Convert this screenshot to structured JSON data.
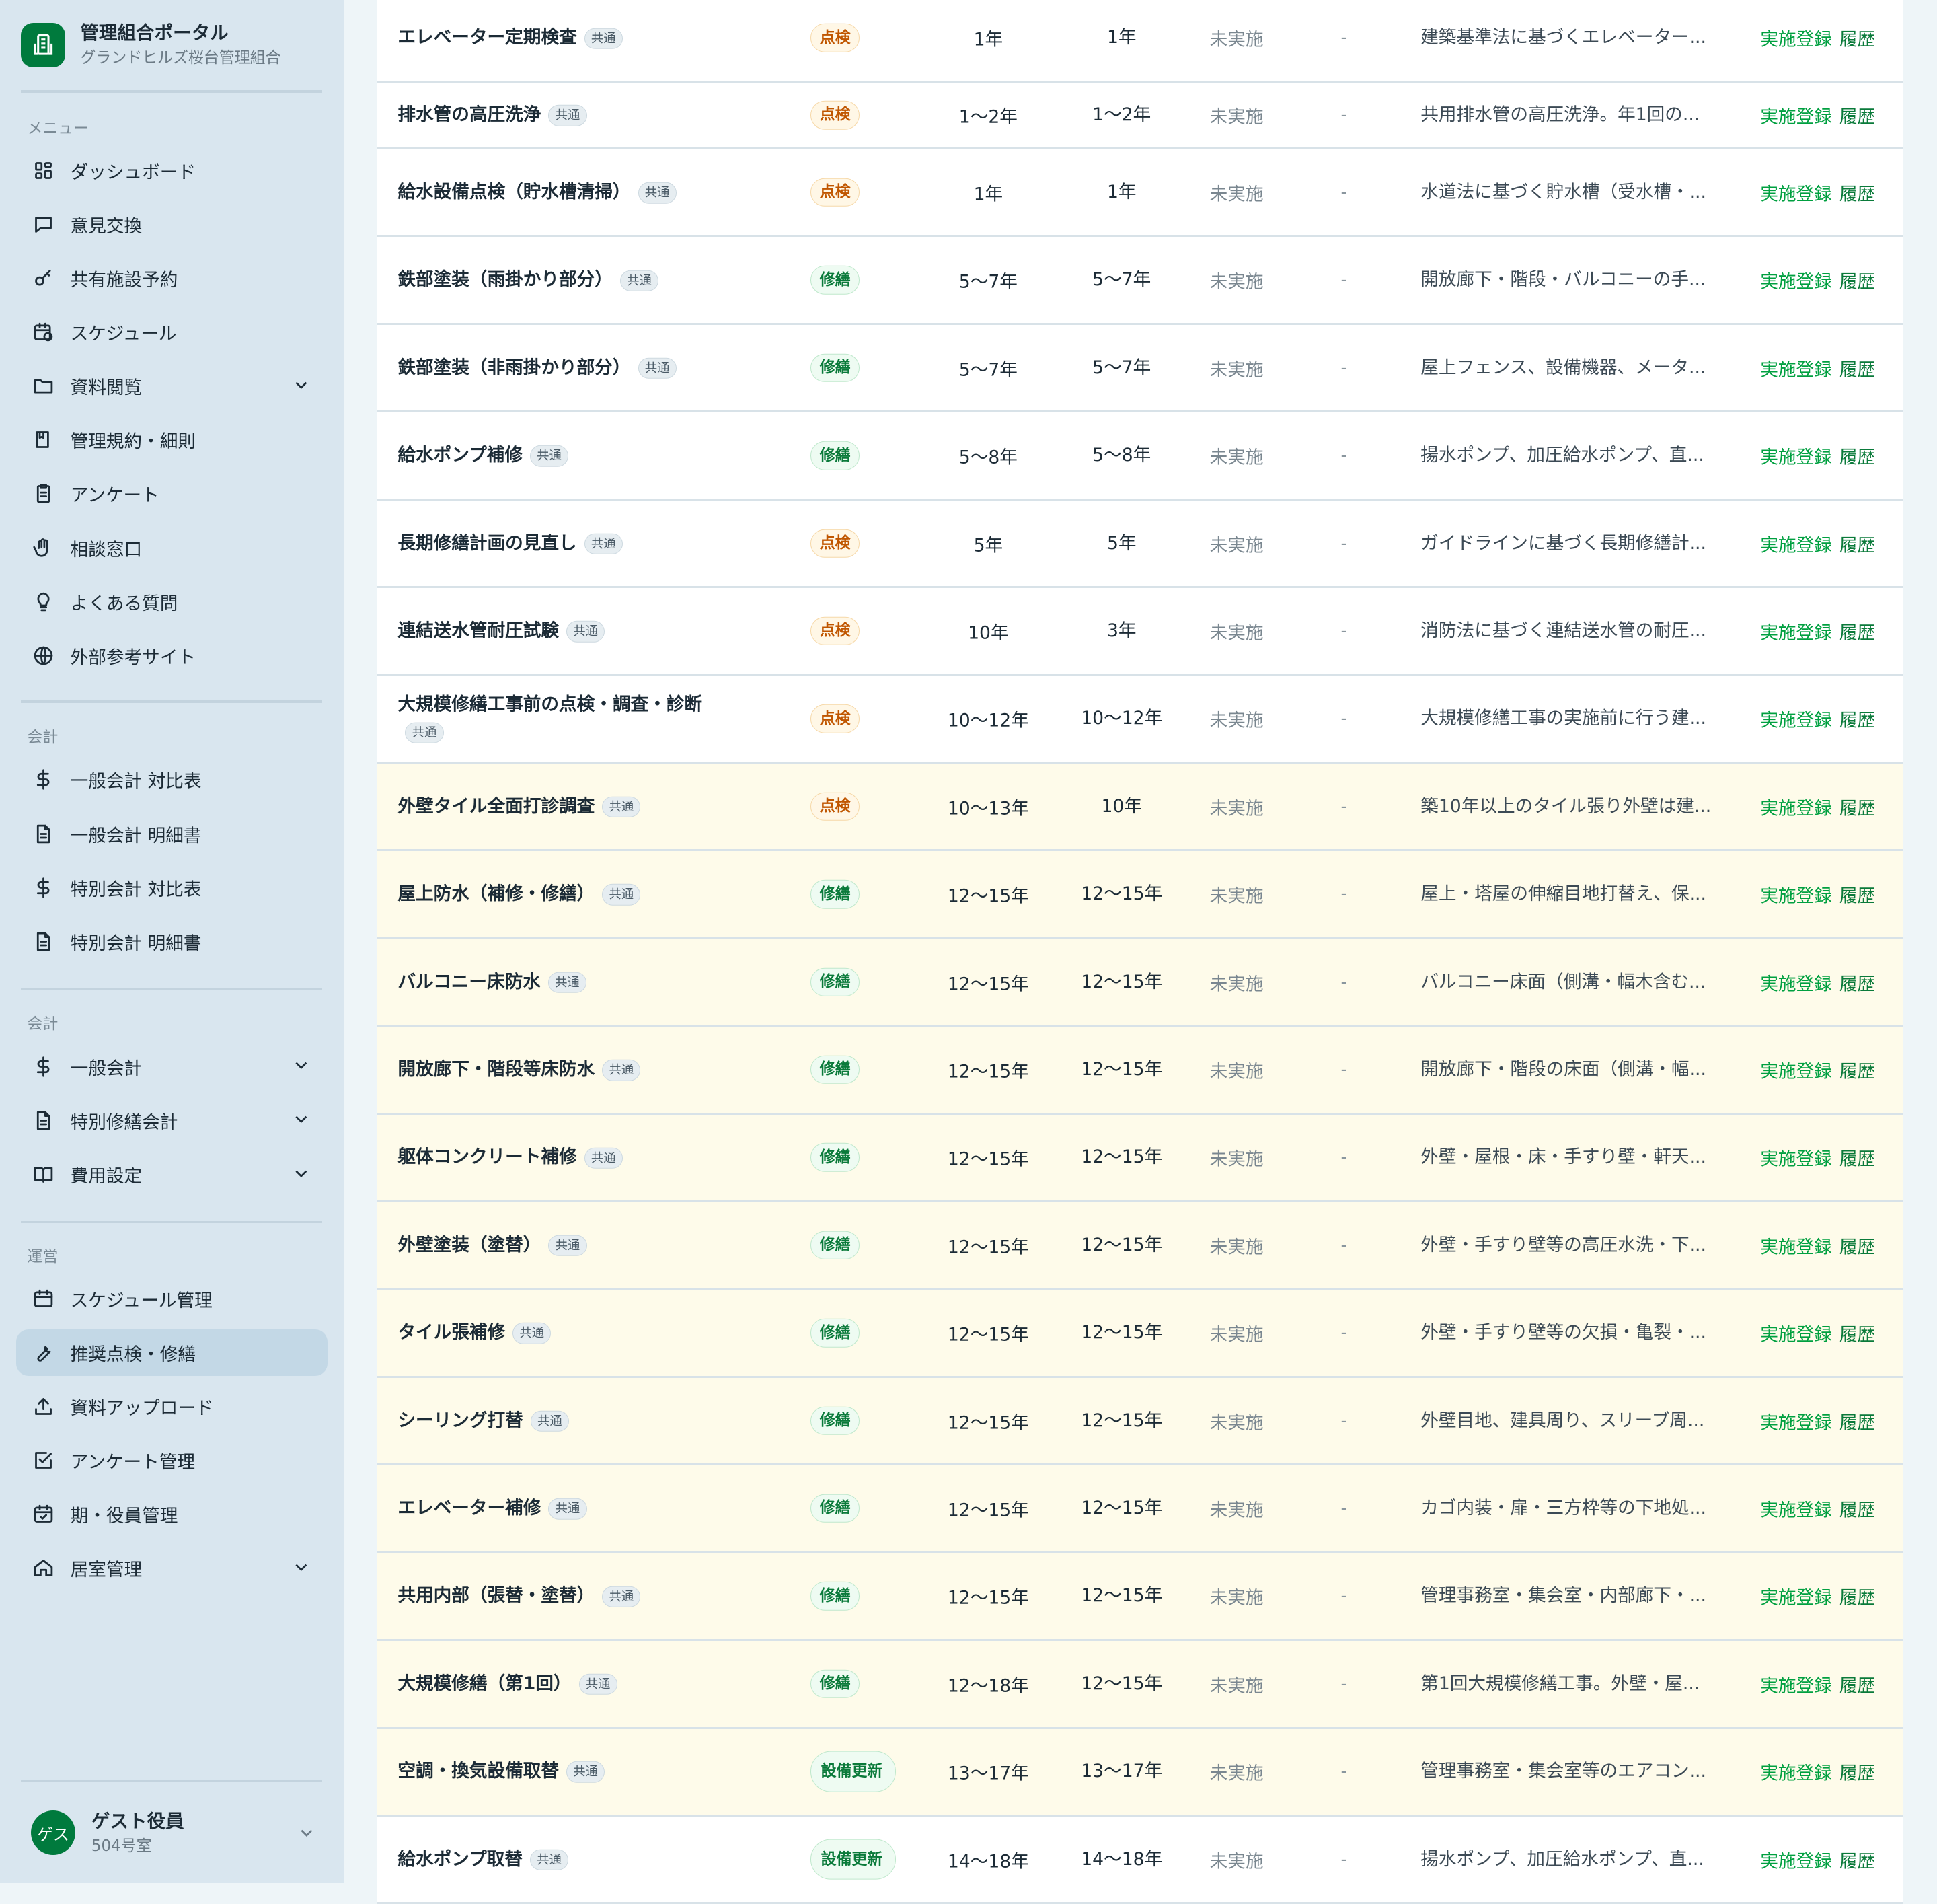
{
  "brand": {
    "title": "管理組合ポータル",
    "subtitle": "グランドヒルズ桜台管理組合",
    "icon": "building-icon"
  },
  "colors": {
    "accent": "#007a3d",
    "sidebar": "#d9e6ef",
    "highlight_row": "#fefbea",
    "inspection": "#c05600",
    "repair": "#0a7a3a",
    "link": "#00a040"
  },
  "sections": [
    {
      "label": "メニュー",
      "items": [
        {
          "label": "ダッシュボード",
          "icon": "grid-icon"
        },
        {
          "label": "意見交換",
          "icon": "chat-icon"
        },
        {
          "label": "共有施設予約",
          "icon": "key-icon"
        },
        {
          "label": "スケジュール",
          "icon": "calendar-clock-icon"
        },
        {
          "label": "資料閲覧",
          "icon": "folder-icon",
          "expandable": true
        },
        {
          "label": "管理規約・細則",
          "icon": "book-icon"
        },
        {
          "label": "アンケート",
          "icon": "clipboard-icon"
        },
        {
          "label": "相談窓口",
          "icon": "hand-icon"
        },
        {
          "label": "よくある質問",
          "icon": "lightbulb-icon"
        },
        {
          "label": "外部参考サイト",
          "icon": "globe-icon"
        }
      ]
    },
    {
      "label": "会計",
      "items": [
        {
          "label": "一般会計 対比表",
          "icon": "dollar-icon"
        },
        {
          "label": "一般会計 明細書",
          "icon": "document-icon"
        },
        {
          "label": "特別会計 対比表",
          "icon": "dollar-icon"
        },
        {
          "label": "特別会計 明細書",
          "icon": "document-icon"
        }
      ]
    },
    {
      "label": "会計",
      "items": [
        {
          "label": "一般会計",
          "icon": "dollar-icon",
          "expandable": true
        },
        {
          "label": "特別修繕会計",
          "icon": "document-icon",
          "expandable": true
        },
        {
          "label": "費用設定",
          "icon": "book-open-icon",
          "expandable": true
        }
      ]
    },
    {
      "label": "運営",
      "items": [
        {
          "label": "スケジュール管理",
          "icon": "calendar-icon"
        },
        {
          "label": "推奨点検・修繕",
          "icon": "wrench-icon",
          "active": true
        },
        {
          "label": "資料アップロード",
          "icon": "upload-icon"
        },
        {
          "label": "アンケート管理",
          "icon": "checkbox-icon"
        },
        {
          "label": "期・役員管理",
          "icon": "calendar-check-icon"
        },
        {
          "label": "居室管理",
          "icon": "home-icon",
          "expandable": true
        }
      ]
    }
  ],
  "user": {
    "avatar": "ゲス",
    "name": "ゲスト役員",
    "room": "504号室"
  },
  "common_label": "共通",
  "actions": {
    "register": "実施登録",
    "history": "履歴"
  },
  "rows": [
    {
      "name": "エレベーター定期検査",
      "type": "点検",
      "t": "k",
      "c1": "1年",
      "c2": "1年",
      "status": "未実施",
      "last": "-",
      "desc": "建築基準法に基づくエレベーター..."
    },
    {
      "name": "排水管の高圧洗浄",
      "type": "点検",
      "t": "k",
      "c1": "1〜2年",
      "c2": "1〜2年",
      "status": "未実施",
      "last": "-",
      "desc": "共用排水管の高圧洗浄。年1回の...",
      "short": true
    },
    {
      "name": "給水設備点検（貯水槽清掃）",
      "type": "点検",
      "t": "k",
      "c1": "1年",
      "c2": "1年",
      "status": "未実施",
      "last": "-",
      "desc": "水道法に基づく貯水槽（受水槽・..."
    },
    {
      "name": "鉄部塗装（雨掛かり部分）",
      "type": "修繕",
      "t": "s",
      "c1": "5〜7年",
      "c2": "5〜7年",
      "status": "未実施",
      "last": "-",
      "desc": "開放廊下・階段・バルコニーの手..."
    },
    {
      "name": "鉄部塗装（非雨掛かり部分）",
      "type": "修繕",
      "t": "s",
      "c1": "5〜7年",
      "c2": "5〜7年",
      "status": "未実施",
      "last": "-",
      "desc": "屋上フェンス、設備機器、メータ..."
    },
    {
      "name": "給水ポンプ補修",
      "type": "修繕",
      "t": "s",
      "c1": "5〜8年",
      "c2": "5〜8年",
      "status": "未実施",
      "last": "-",
      "desc": "揚水ポンプ、加圧給水ポンプ、直..."
    },
    {
      "name": "長期修繕計画の見直し",
      "type": "点検",
      "t": "k",
      "c1": "5年",
      "c2": "5年",
      "status": "未実施",
      "last": "-",
      "desc": "ガイドラインに基づく長期修繕計..."
    },
    {
      "name": "連結送水管耐圧試験",
      "type": "点検",
      "t": "k",
      "c1": "10年",
      "c2": "3年",
      "status": "未実施",
      "last": "-",
      "desc": "消防法に基づく連結送水管の耐圧..."
    },
    {
      "name": "大規模修繕工事前の点検・調査・診断",
      "type": "点検",
      "t": "k",
      "c1": "10〜12年",
      "c2": "10〜12年",
      "status": "未実施",
      "last": "-",
      "desc": "大規模修繕工事の実施前に行う建..."
    },
    {
      "name": "外壁タイル全面打診調査",
      "type": "点検",
      "t": "k",
      "c1": "10〜13年",
      "c2": "10年",
      "status": "未実施",
      "last": "-",
      "desc": "築10年以上のタイル張り外壁は建...",
      "hl": true
    },
    {
      "name": "屋上防水（補修・修繕）",
      "type": "修繕",
      "t": "s",
      "c1": "12〜15年",
      "c2": "12〜15年",
      "status": "未実施",
      "last": "-",
      "desc": "屋上・塔屋の伸縮目地打替え、保...",
      "hl": true
    },
    {
      "name": "バルコニー床防水",
      "type": "修繕",
      "t": "s",
      "c1": "12〜15年",
      "c2": "12〜15年",
      "status": "未実施",
      "last": "-",
      "desc": "バルコニー床面（側溝・幅木含む...",
      "hl": true
    },
    {
      "name": "開放廊下・階段等床防水",
      "type": "修繕",
      "t": "s",
      "c1": "12〜15年",
      "c2": "12〜15年",
      "status": "未実施",
      "last": "-",
      "desc": "開放廊下・階段の床面（側溝・幅...",
      "hl": true
    },
    {
      "name": "躯体コンクリート補修",
      "type": "修繕",
      "t": "s",
      "c1": "12〜15年",
      "c2": "12〜15年",
      "status": "未実施",
      "last": "-",
      "desc": "外壁・屋根・床・手すり壁・軒天...",
      "hl": true
    },
    {
      "name": "外壁塗装（塗替）",
      "type": "修繕",
      "t": "s",
      "c1": "12〜15年",
      "c2": "12〜15年",
      "status": "未実施",
      "last": "-",
      "desc": "外壁・手すり壁等の高圧水洗・下...",
      "hl": true
    },
    {
      "name": "タイル張補修",
      "type": "修繕",
      "t": "s",
      "c1": "12〜15年",
      "c2": "12〜15年",
      "status": "未実施",
      "last": "-",
      "desc": "外壁・手すり壁等の欠損・亀裂・...",
      "hl": true
    },
    {
      "name": "シーリング打替",
      "type": "修繕",
      "t": "s",
      "c1": "12〜15年",
      "c2": "12〜15年",
      "status": "未実施",
      "last": "-",
      "desc": "外壁目地、建具周り、スリーブ周...",
      "hl": true
    },
    {
      "name": "エレベーター補修",
      "type": "修繕",
      "t": "s",
      "c1": "12〜15年",
      "c2": "12〜15年",
      "status": "未実施",
      "last": "-",
      "desc": "カゴ内装・扉・三方枠等の下地処...",
      "hl": true
    },
    {
      "name": "共用内部（張替・塗替）",
      "type": "修繕",
      "t": "s",
      "c1": "12〜15年",
      "c2": "12〜15年",
      "status": "未実施",
      "last": "-",
      "desc": "管理事務室・集会室・内部廊下・...",
      "hl": true
    },
    {
      "name": "大規模修繕（第1回）",
      "type": "修繕",
      "t": "s",
      "c1": "12〜18年",
      "c2": "12〜15年",
      "status": "未実施",
      "last": "-",
      "desc": "第1回大規模修繕工事。外壁・屋...",
      "hl": true
    },
    {
      "name": "空調・換気設備取替",
      "type": "設備更新",
      "t": "e",
      "c1": "13〜17年",
      "c2": "13〜17年",
      "status": "未実施",
      "last": "-",
      "desc": "管理事務室・集会室等のエアコン...",
      "hl": true
    },
    {
      "name": "給水ポンプ取替",
      "type": "設備更新",
      "t": "e",
      "c1": "14〜18年",
      "c2": "14〜18年",
      "status": "未実施",
      "last": "-",
      "desc": "揚水ポンプ、加圧給水ポンプ、直..."
    }
  ]
}
